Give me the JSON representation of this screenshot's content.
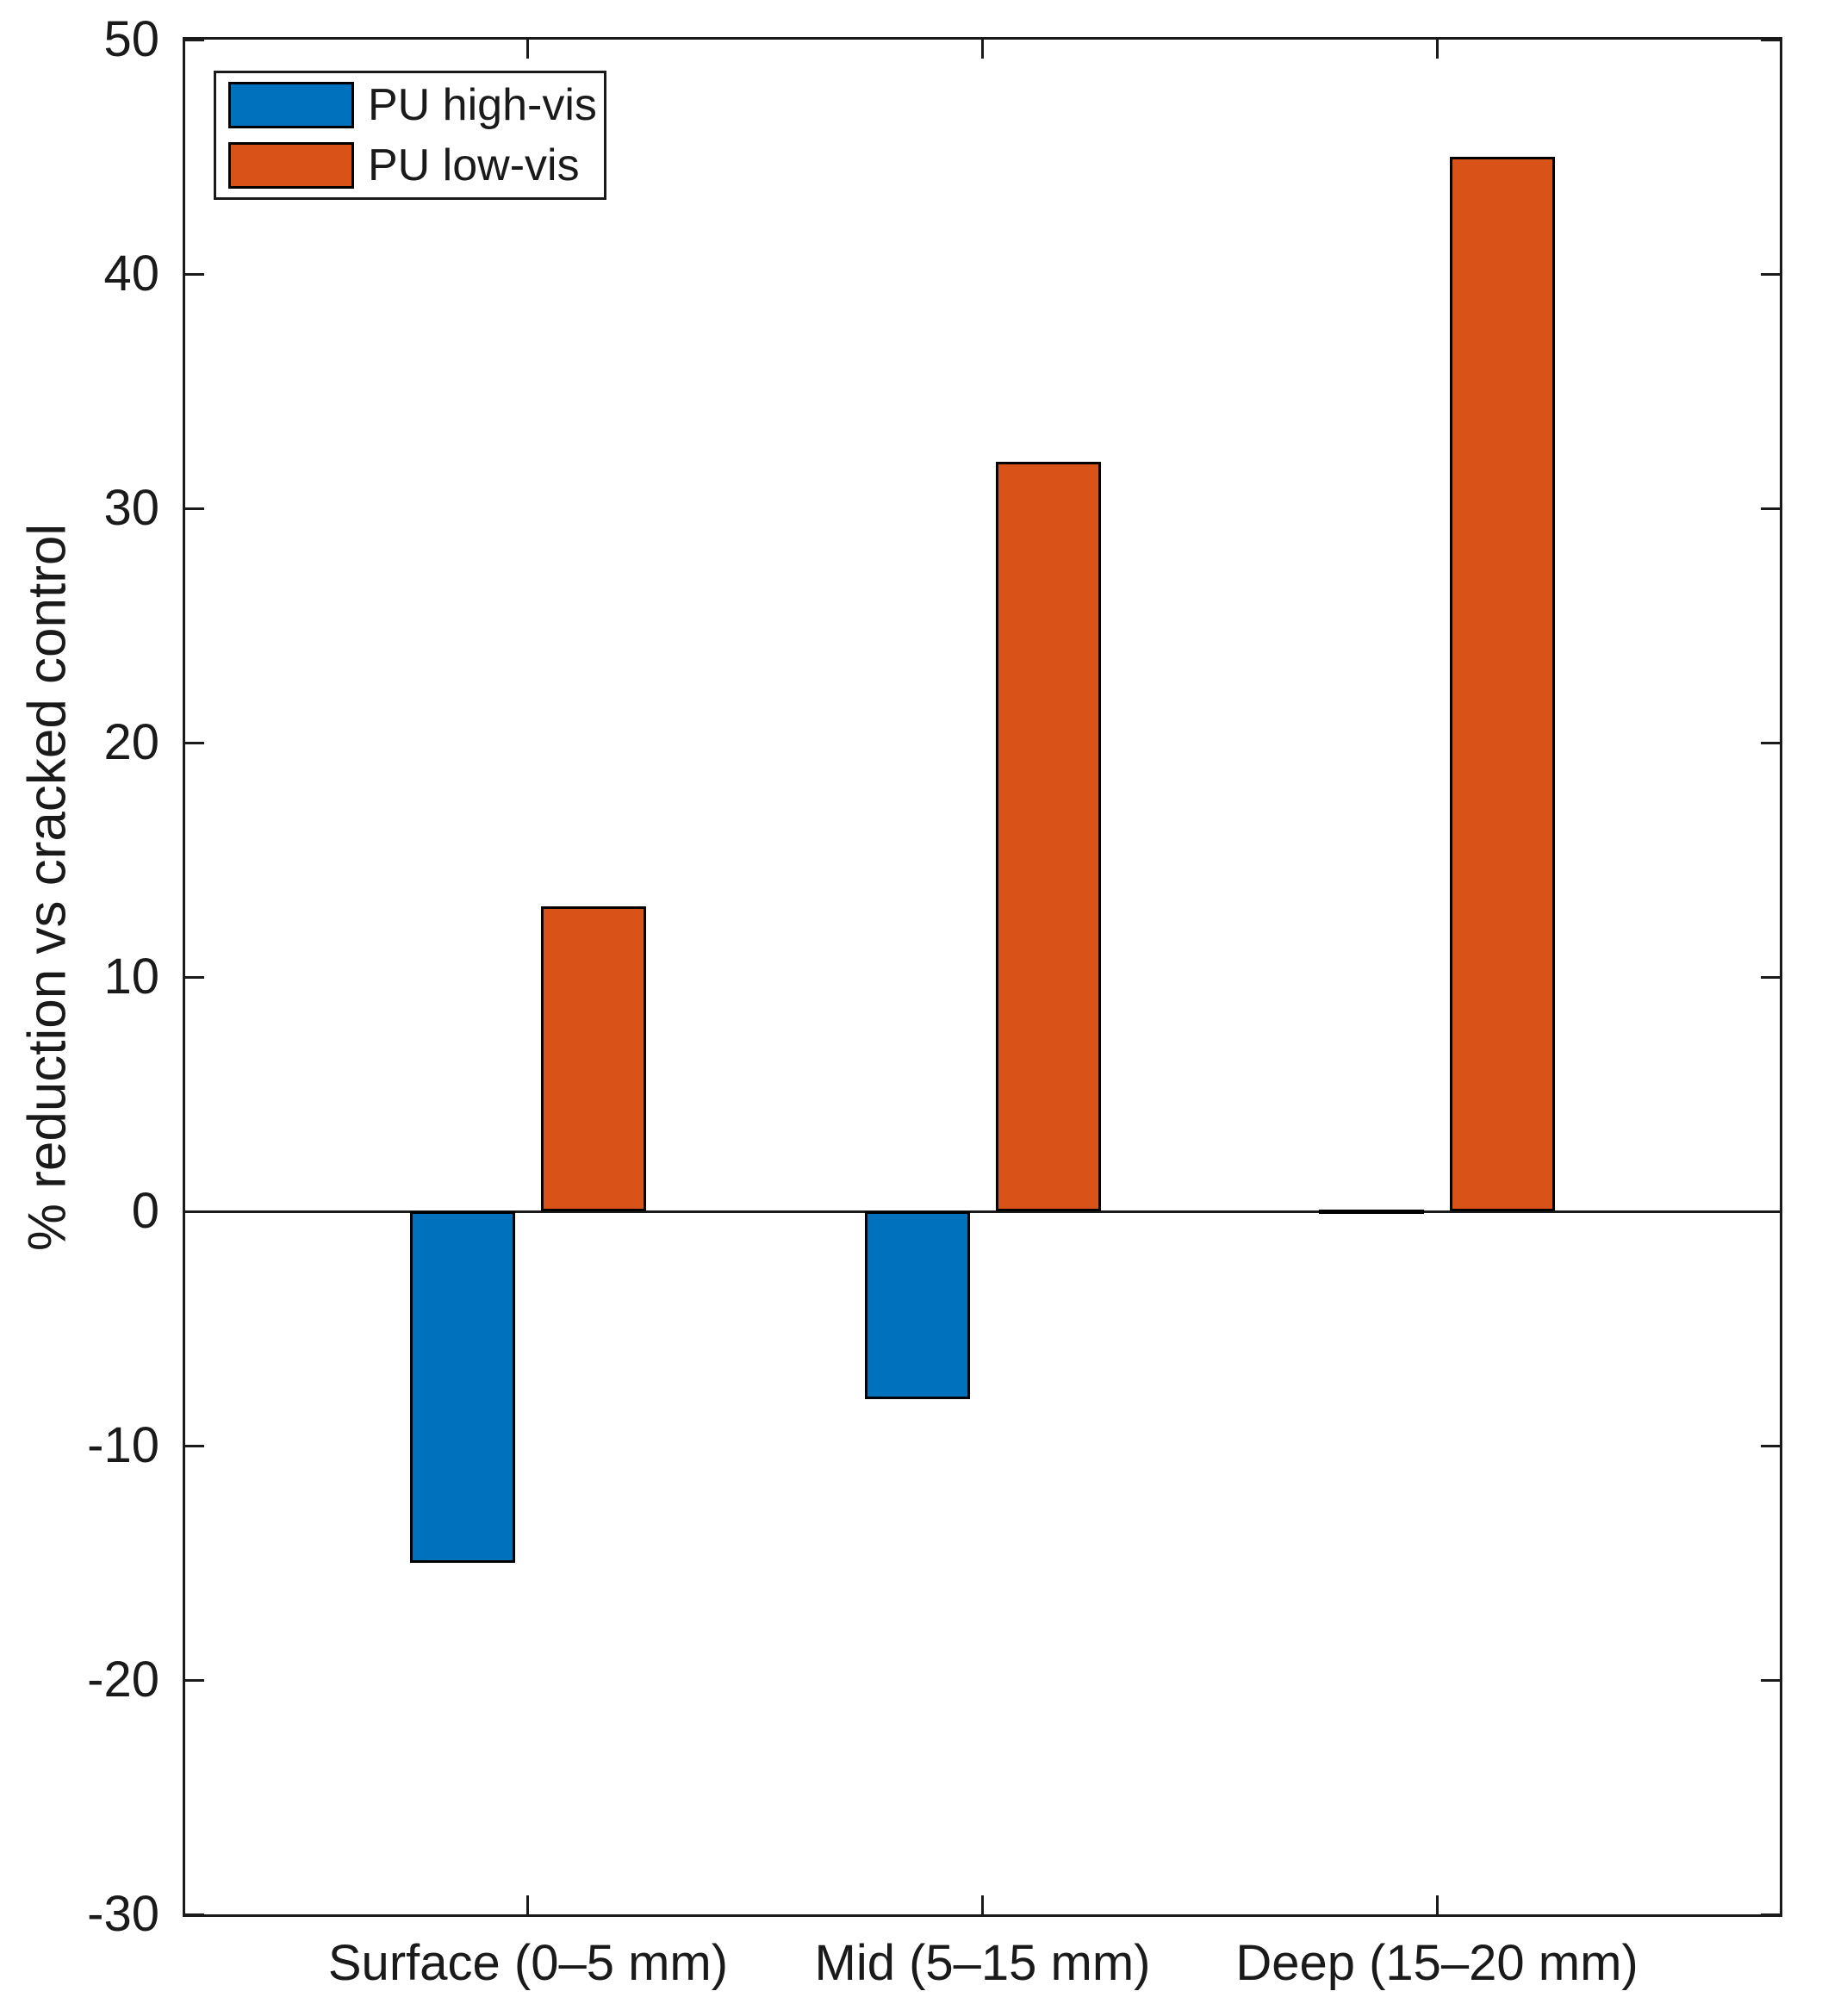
{
  "figure": {
    "background": "#ffffff",
    "axis_color": "#1a1a1a",
    "bar_edge_color": "#000000"
  },
  "chart_data": {
    "type": "bar",
    "title": "",
    "categories": [
      "Surface (0–5 mm)",
      "Mid (5–15 mm)",
      "Deep (15–20 mm)"
    ],
    "series": [
      {
        "name": "PU high-vis",
        "color": "#0072BD",
        "values": [
          -15,
          -8,
          0
        ]
      },
      {
        "name": "PU low-vis",
        "color": "#D95319",
        "values": [
          13,
          32,
          45
        ]
      }
    ],
    "xlabel": "",
    "ylabel": "% reduction vs cracked control",
    "ylim": [
      -30,
      50
    ],
    "yticks": [
      50,
      40,
      30,
      20,
      10,
      0,
      -10,
      -20,
      -30
    ],
    "grid": false,
    "legend_position": "top-left",
    "legend": [
      "PU high-vis",
      "PU low-vis"
    ]
  }
}
